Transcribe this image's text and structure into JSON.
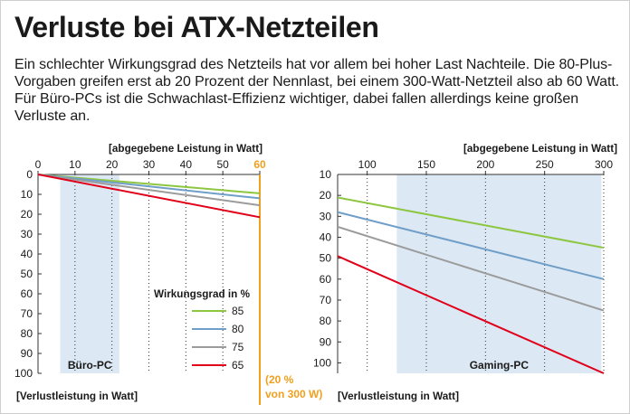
{
  "title": "Verluste bei ATX-Netzteilen",
  "subtitle": "Ein schlechter Wirkungsgrad des Netzteils hat vor allem bei hoher Last Nachteile. Die 80-Plus-Vorgaben greifen erst ab 20 Prozent der Nennlast, bei einem 300-Watt-Netzteil also ab 60 Watt. Für Büro-PCs ist die Schwachlast-Effizienz wichtiger, dabei fallen allerdings keine großen Verluste an.",
  "colors": {
    "green": "#8dc63f",
    "blue": "#6f9ec9",
    "gray": "#9b9b9b",
    "red": "#e1001a",
    "orange": "#f0a01e",
    "highlight": "#dce8f3"
  },
  "chart_data": [
    {
      "type": "line",
      "name": "buero",
      "xlabel": "[abgegebene Leistung in Watt]",
      "ylabel": "[Verlustleistung in Watt]",
      "xlim": [
        0,
        60
      ],
      "ylim": [
        0,
        100
      ],
      "x_ticks": [
        "0",
        "10",
        "20",
        "30",
        "40",
        "50",
        "60"
      ],
      "y_ticks": [
        "0",
        "10",
        "20",
        "30",
        "40",
        "50",
        "60",
        "70",
        "80",
        "90",
        "100"
      ],
      "highlight_range": [
        6,
        22
      ],
      "highlight_label": "Büro-PC",
      "marker": {
        "x": 60,
        "label_line1": "(20 %",
        "label_line2": "von 300 W)"
      },
      "legend_title": "Wirkungsgrad in %",
      "series": [
        {
          "name": "85",
          "color": "green",
          "x": [
            0,
            60
          ],
          "y": [
            0,
            9.5
          ]
        },
        {
          "name": "80",
          "color": "blue",
          "x": [
            0,
            60
          ],
          "y": [
            0,
            12
          ]
        },
        {
          "name": "75",
          "color": "gray",
          "x": [
            0,
            60
          ],
          "y": [
            0,
            15.5
          ]
        },
        {
          "name": "65",
          "color": "red",
          "x": [
            0,
            60
          ],
          "y": [
            0,
            21.5
          ]
        }
      ]
    },
    {
      "type": "line",
      "name": "gaming",
      "xlabel": "[abgegebene Leistung in Watt]",
      "ylabel": "[Verlustleistung in Watt]",
      "xlim": [
        75,
        300
      ],
      "ylim": [
        10,
        105
      ],
      "x_ticks": [
        "100",
        "150",
        "200",
        "250",
        "300"
      ],
      "y_ticks": [
        "10",
        "20",
        "30",
        "40",
        "50",
        "60",
        "70",
        "80",
        "90",
        "100"
      ],
      "highlight_range": [
        125,
        298
      ],
      "highlight_label": "Gaming-PC",
      "series": [
        {
          "name": "85",
          "color": "green",
          "x": [
            75,
            300
          ],
          "y": [
            21,
            45
          ]
        },
        {
          "name": "80",
          "color": "blue",
          "x": [
            75,
            300
          ],
          "y": [
            28,
            60
          ]
        },
        {
          "name": "75",
          "color": "gray",
          "x": [
            75,
            300
          ],
          "y": [
            35,
            75
          ]
        },
        {
          "name": "65",
          "color": "red",
          "x": [
            75,
            300
          ],
          "y": [
            49,
            105
          ]
        }
      ]
    }
  ]
}
